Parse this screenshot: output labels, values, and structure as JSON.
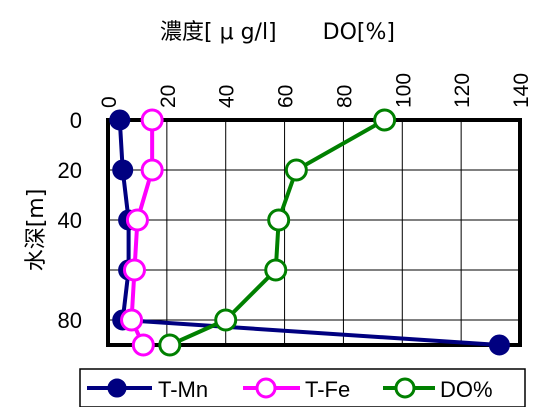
{
  "chart_data": {
    "type": "line",
    "orientation": "depth-profile",
    "top_axis_label_left": "濃度[ μ g/l]",
    "top_axis_label_right": "DO[%]",
    "ylabel": "水深[m]",
    "xlim": [
      0,
      140
    ],
    "x_ticks": [
      "0",
      "20",
      "40",
      "60",
      "80",
      "100",
      "120",
      "140"
    ],
    "ylim": [
      0,
      90
    ],
    "y_ticks": [
      "0",
      "20",
      "40",
      "80"
    ],
    "y_tick_values": [
      0,
      20,
      40,
      80
    ],
    "grid": true,
    "legend_position": "bottom",
    "series": [
      {
        "name": "T-Mn",
        "color": "#000080",
        "marker": "filled-circle",
        "x": [
          4,
          5,
          7,
          7,
          5,
          133
        ],
        "y": [
          0,
          20,
          40,
          60,
          80,
          90
        ]
      },
      {
        "name": "T-Fe",
        "color": "#ff00ff",
        "marker": "open-circle",
        "x": [
          15,
          15,
          10,
          9,
          8,
          12
        ],
        "y": [
          0,
          20,
          40,
          60,
          80,
          90
        ]
      },
      {
        "name": "DO%",
        "color": "#008000",
        "marker": "open-circle",
        "x": [
          94,
          64,
          58,
          57,
          40,
          21
        ],
        "y": [
          0,
          20,
          40,
          60,
          80,
          90
        ]
      }
    ]
  },
  "legend": {
    "items": [
      "T-Mn",
      "T-Fe",
      "DO%"
    ]
  }
}
